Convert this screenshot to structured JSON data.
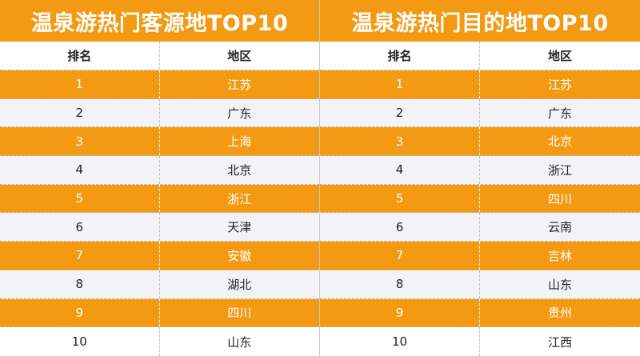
{
  "colors": {
    "accent": "#f39a12",
    "row_alt": "#f3f3f7",
    "text_dark": "#222222"
  },
  "tables": [
    {
      "title": "温泉游热门客源地TOP10",
      "headers": [
        "排名",
        "地区"
      ],
      "rows": [
        [
          "1",
          "江苏"
        ],
        [
          "2",
          "广东"
        ],
        [
          "3",
          "上海"
        ],
        [
          "4",
          "北京"
        ],
        [
          "5",
          "浙江"
        ],
        [
          "6",
          "天津"
        ],
        [
          "7",
          "安徽"
        ],
        [
          "8",
          "湖北"
        ],
        [
          "9",
          "四川"
        ],
        [
          "10",
          "山东"
        ]
      ]
    },
    {
      "title": "温泉游热门目的地TOP10",
      "headers": [
        "排名",
        "地区"
      ],
      "rows": [
        [
          "1",
          "江苏"
        ],
        [
          "2",
          "广东"
        ],
        [
          "3",
          "北京"
        ],
        [
          "4",
          "浙江"
        ],
        [
          "5",
          "四川"
        ],
        [
          "6",
          "云南"
        ],
        [
          "7",
          "吉林"
        ],
        [
          "8",
          "山东"
        ],
        [
          "9",
          "贵州"
        ],
        [
          "10",
          "江西"
        ]
      ]
    }
  ]
}
